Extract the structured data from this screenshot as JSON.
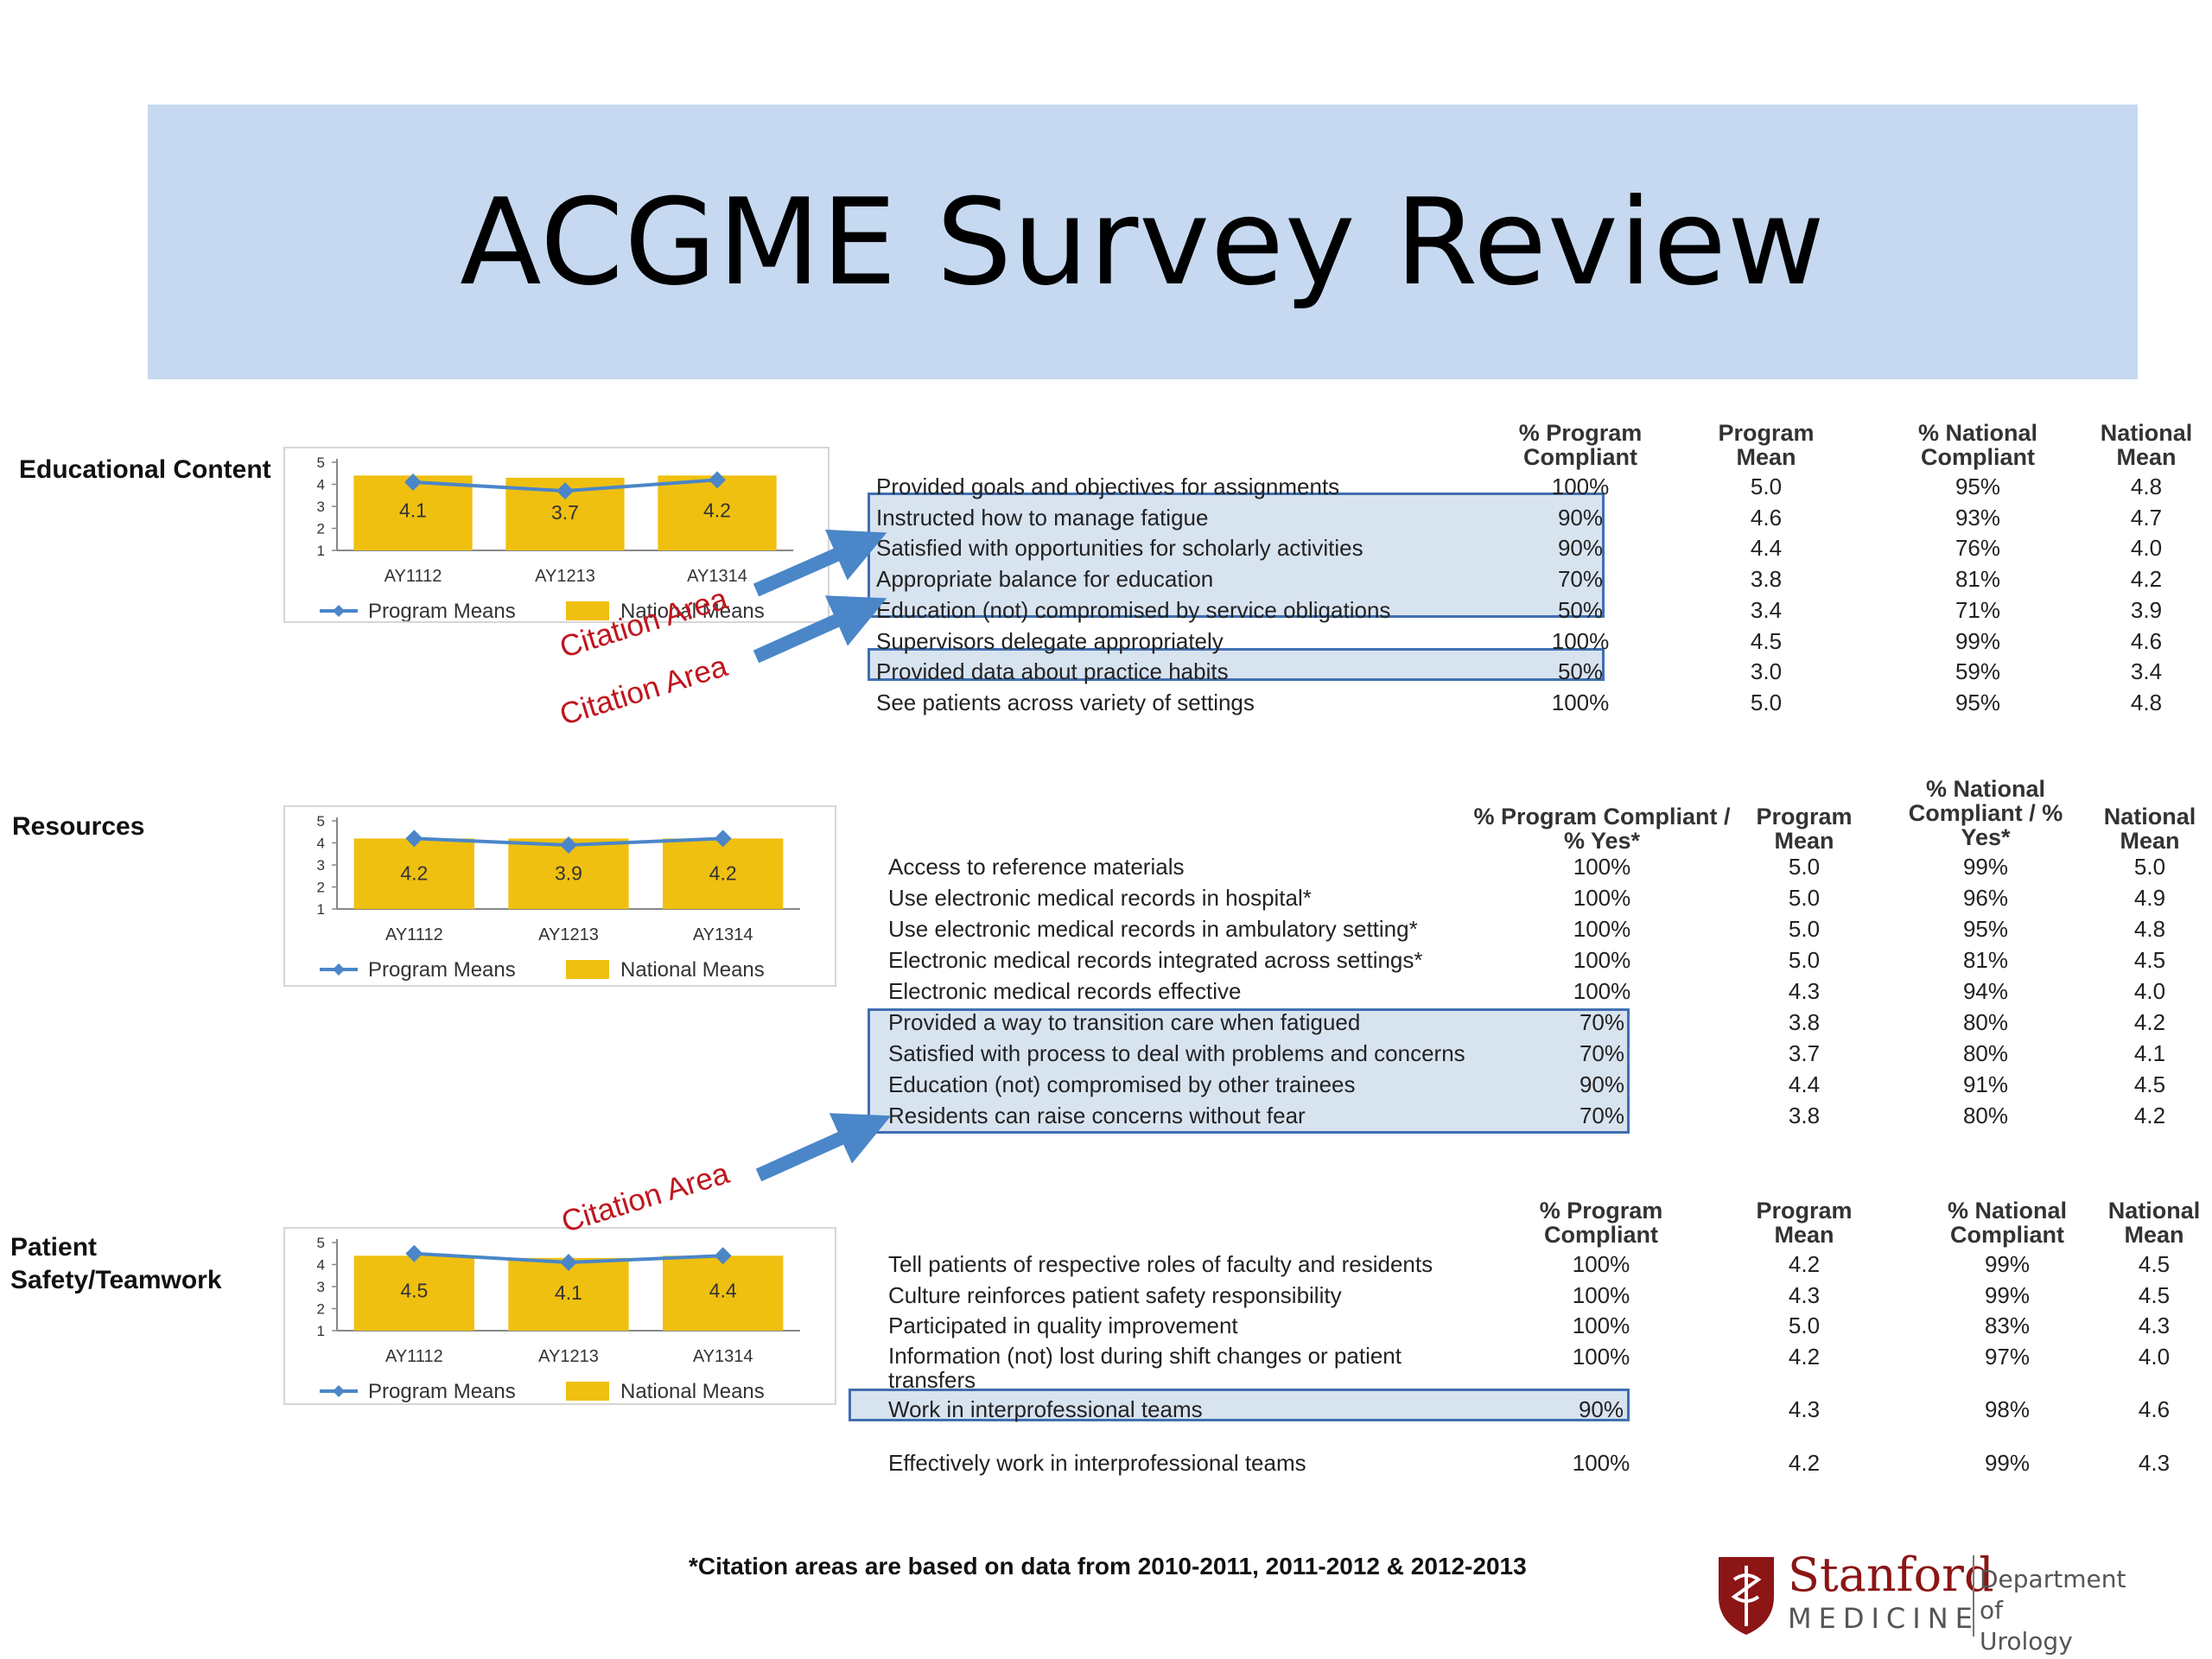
{
  "title": "ACGME Survey Review",
  "legend": {
    "program": "Program Means",
    "national": "National Means"
  },
  "citation_label": "Citation Area",
  "footnote": "*Citation areas are based on data from 2010-2011, 2011-2012 & 2012-2013",
  "logo": {
    "name": "Stanford",
    "sub": "MEDICINE",
    "dept_line1": "Department of",
    "dept_line2": "Urology"
  },
  "colors": {
    "banner": "#c6d9f1",
    "bar": "#f0c010",
    "line": "#4a86c8",
    "highlight_border": "#3f6fb1",
    "citation": "#c0161e"
  },
  "sections": [
    {
      "label": "Educational Content",
      "columns": [
        "% Program Compliant",
        "Program Mean",
        "% National Compliant",
        "National Mean"
      ],
      "rows": [
        {
          "item": "Provided goals and objectives for assignments",
          "prog_compliant": "100%",
          "prog_mean": "5.0",
          "nat_compliant": "95%",
          "nat_mean": "4.8"
        },
        {
          "item": "Instructed how to manage fatigue",
          "prog_compliant": "90%",
          "prog_mean": "4.6",
          "nat_compliant": "93%",
          "nat_mean": "4.7"
        },
        {
          "item": "Satisfied with opportunities for scholarly activities",
          "prog_compliant": "90%",
          "prog_mean": "4.4",
          "nat_compliant": "76%",
          "nat_mean": "4.0"
        },
        {
          "item": "Appropriate balance for education",
          "prog_compliant": "70%",
          "prog_mean": "3.8",
          "nat_compliant": "81%",
          "nat_mean": "4.2"
        },
        {
          "item": "Education (not) compromised by service obligations",
          "prog_compliant": "50%",
          "prog_mean": "3.4",
          "nat_compliant": "71%",
          "nat_mean": "3.9"
        },
        {
          "item": "Supervisors delegate appropriately",
          "prog_compliant": "100%",
          "prog_mean": "4.5",
          "nat_compliant": "99%",
          "nat_mean": "4.6"
        },
        {
          "item": "Provided data about practice habits",
          "prog_compliant": "50%",
          "prog_mean": "3.0",
          "nat_compliant": "59%",
          "nat_mean": "3.4"
        },
        {
          "item": "See patients across variety of settings",
          "prog_compliant": "100%",
          "prog_mean": "5.0",
          "nat_compliant": "95%",
          "nat_mean": "4.8"
        }
      ]
    },
    {
      "label": "Resources",
      "columns": [
        "% Program Compliant / % Yes*",
        "Program Mean",
        "% National Compliant / % Yes*",
        "National Mean"
      ],
      "rows": [
        {
          "item": "Access to reference materials",
          "prog_compliant": "100%",
          "prog_mean": "5.0",
          "nat_compliant": "99%",
          "nat_mean": "5.0"
        },
        {
          "item": "Use electronic medical records in hospital*",
          "prog_compliant": "100%",
          "prog_mean": "5.0",
          "nat_compliant": "96%",
          "nat_mean": "4.9"
        },
        {
          "item": "Use electronic medical records in ambulatory setting*",
          "prog_compliant": "100%",
          "prog_mean": "5.0",
          "nat_compliant": "95%",
          "nat_mean": "4.8"
        },
        {
          "item": "Electronic medical records integrated across settings*",
          "prog_compliant": "100%",
          "prog_mean": "5.0",
          "nat_compliant": "81%",
          "nat_mean": "4.5"
        },
        {
          "item": "Electronic medical records effective",
          "prog_compliant": "100%",
          "prog_mean": "4.3",
          "nat_compliant": "94%",
          "nat_mean": "4.0"
        },
        {
          "item": "Provided a way to transition care when fatigued",
          "prog_compliant": "70%",
          "prog_mean": "3.8",
          "nat_compliant": "80%",
          "nat_mean": "4.2"
        },
        {
          "item": "Satisfied with process to deal with problems and concerns",
          "prog_compliant": "70%",
          "prog_mean": "3.7",
          "nat_compliant": "80%",
          "nat_mean": "4.1"
        },
        {
          "item": "Education (not) compromised by other trainees",
          "prog_compliant": "90%",
          "prog_mean": "4.4",
          "nat_compliant": "91%",
          "nat_mean": "4.5"
        },
        {
          "item": "Residents can raise concerns without fear",
          "prog_compliant": "70%",
          "prog_mean": "3.8",
          "nat_compliant": "80%",
          "nat_mean": "4.2"
        }
      ]
    },
    {
      "label": "Patient Safety/Teamwork",
      "columns": [
        "% Program Compliant",
        "Program Mean",
        "% National Compliant",
        "National Mean"
      ],
      "rows": [
        {
          "item": "Tell patients of respective roles of faculty and residents",
          "prog_compliant": "100%",
          "prog_mean": "4.2",
          "nat_compliant": "99%",
          "nat_mean": "4.5"
        },
        {
          "item": "Culture reinforces patient safety responsibility",
          "prog_compliant": "100%",
          "prog_mean": "4.3",
          "nat_compliant": "99%",
          "nat_mean": "4.5"
        },
        {
          "item": "Participated in quality improvement",
          "prog_compliant": "100%",
          "prog_mean": "5.0",
          "nat_compliant": "83%",
          "nat_mean": "4.3"
        },
        {
          "item": "Information (not) lost during shift changes or patient transfers",
          "prog_compliant": "100%",
          "prog_mean": "4.2",
          "nat_compliant": "97%",
          "nat_mean": "4.0"
        },
        {
          "item": "Work in interprofessional teams",
          "prog_compliant": "90%",
          "prog_mean": "4.3",
          "nat_compliant": "98%",
          "nat_mean": "4.6"
        },
        {
          "item": "Effectively work in interprofessional teams",
          "prog_compliant": "100%",
          "prog_mean": "4.2",
          "nat_compliant": "99%",
          "nat_mean": "4.3"
        }
      ]
    }
  ],
  "chart_data": [
    {
      "type": "bar",
      "categories": [
        "AY1112",
        "AY1213",
        "AY1314"
      ],
      "ylim": [
        1,
        5
      ],
      "yticks": [
        "1",
        "2",
        "3",
        "4",
        "5"
      ],
      "series": [
        {
          "name": "National Means",
          "values": [
            4.4,
            4.3,
            4.4
          ]
        },
        {
          "name": "Program Means",
          "values": [
            4.1,
            3.7,
            4.2
          ]
        }
      ],
      "data_labels": [
        "4.1",
        "3.7",
        "4.2"
      ]
    },
    {
      "type": "bar",
      "categories": [
        "AY1112",
        "AY1213",
        "AY1314"
      ],
      "ylim": [
        1,
        5
      ],
      "yticks": [
        "1",
        "2",
        "3",
        "4",
        "5"
      ],
      "series": [
        {
          "name": "National Means",
          "values": [
            4.2,
            4.2,
            4.2
          ]
        },
        {
          "name": "Program Means",
          "values": [
            4.2,
            3.9,
            4.2
          ]
        }
      ],
      "data_labels": [
        "4.2",
        "3.9",
        "4.2"
      ]
    },
    {
      "type": "bar",
      "categories": [
        "AY1112",
        "AY1213",
        "AY1314"
      ],
      "ylim": [
        1,
        5
      ],
      "yticks": [
        "1",
        "2",
        "3",
        "4",
        "5"
      ],
      "series": [
        {
          "name": "National Means",
          "values": [
            4.4,
            4.3,
            4.4
          ]
        },
        {
          "name": "Program Means",
          "values": [
            4.5,
            4.1,
            4.4
          ]
        }
      ],
      "data_labels": [
        "4.5",
        "4.1",
        "4.4"
      ]
    }
  ]
}
